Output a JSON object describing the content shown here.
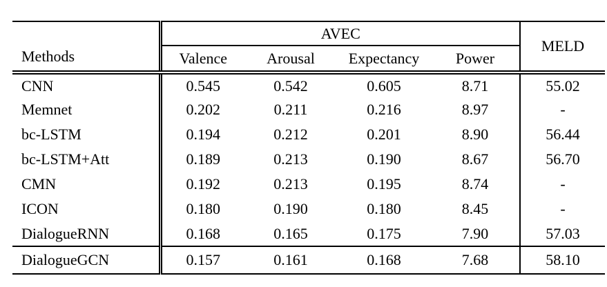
{
  "table": {
    "headers": {
      "methods": "Methods",
      "avec_group": "AVEC",
      "meld": "MELD",
      "sub": [
        "Valence",
        "Arousal",
        "Expectancy",
        "Power"
      ]
    },
    "rows": [
      {
        "method": "CNN",
        "valence": "0.545",
        "arousal": "0.542",
        "expectancy": "0.605",
        "power": "8.71",
        "meld": "55.02"
      },
      {
        "method": "Memnet",
        "valence": "0.202",
        "arousal": "0.211",
        "expectancy": "0.216",
        "power": "8.97",
        "meld": "-"
      },
      {
        "method": "bc-LSTM",
        "valence": "0.194",
        "arousal": "0.212",
        "expectancy": "0.201",
        "power": "8.90",
        "meld": "56.44"
      },
      {
        "method": "bc-LSTM+Att",
        "valence": "0.189",
        "arousal": "0.213",
        "expectancy": "0.190",
        "power": "8.67",
        "meld": "56.70"
      },
      {
        "method": "CMN",
        "valence": "0.192",
        "arousal": "0.213",
        "expectancy": "0.195",
        "power": "8.74",
        "meld": "-"
      },
      {
        "method": "ICON",
        "valence": "0.180",
        "arousal": "0.190",
        "expectancy": "0.180",
        "power": "8.45",
        "meld": "-"
      },
      {
        "method": "DialogueRNN",
        "valence": "0.168",
        "arousal": "0.165",
        "expectancy": "0.175",
        "power": "7.90",
        "meld": "57.03"
      },
      {
        "method": "DialogueGCN",
        "valence": "0.157",
        "arousal": "0.161",
        "expectancy": "0.168",
        "power": "7.68",
        "meld": "58.10"
      }
    ]
  },
  "colors": {
    "text": "#000000",
    "background": "#ffffff",
    "rule": "#000000"
  }
}
